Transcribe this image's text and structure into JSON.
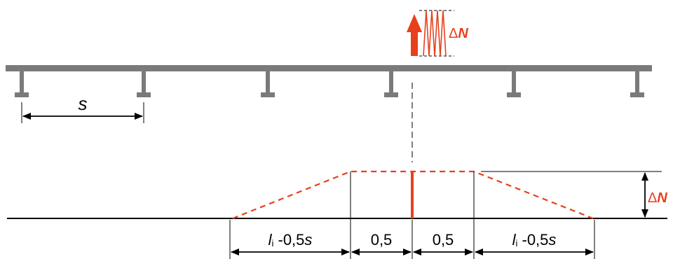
{
  "diagram": {
    "load_label": "ΔN",
    "load_label_symbol": "Δ",
    "load_label_var": "N",
    "spacing_label": "s",
    "height_label": "ΔN",
    "height_label_symbol": "Δ",
    "height_label_var": "N",
    "dims": {
      "left": {
        "var": "l",
        "sub": "i",
        "rest": " -0,5",
        "s": "s"
      },
      "mid_left": "0,5",
      "mid_right": "0,5",
      "right": {
        "var": "l",
        "sub": "i",
        "rest": " -0,5",
        "s": "s"
      }
    },
    "colors": {
      "beam": "#7a7a7a",
      "load": "#e8401c",
      "line": "#000000"
    }
  }
}
